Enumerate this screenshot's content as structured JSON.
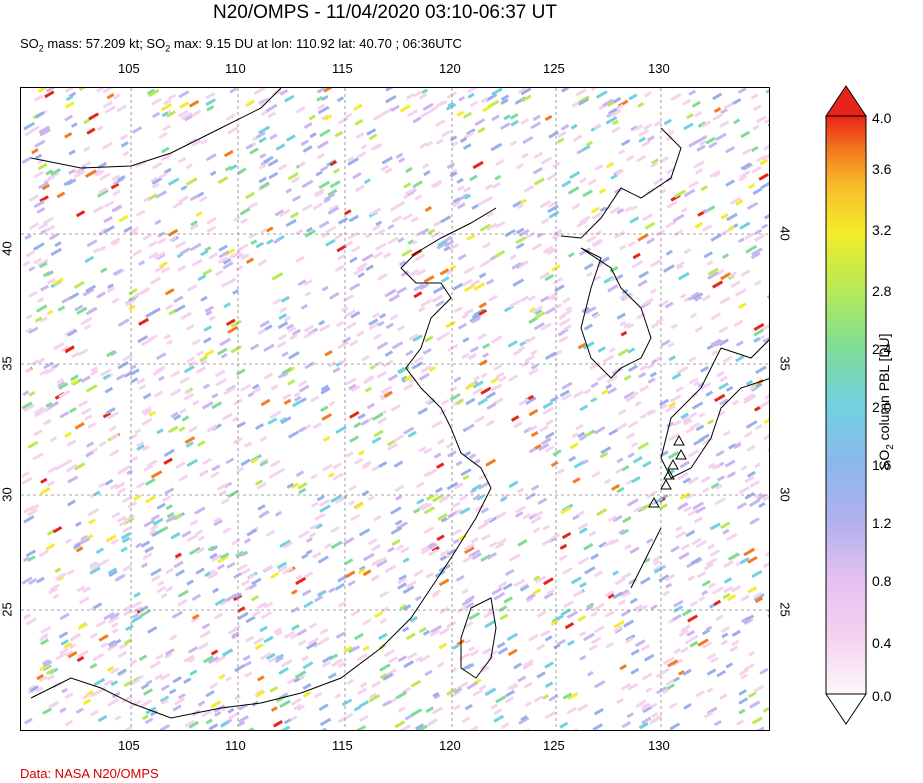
{
  "title": "N20/OMPS - 11/04/2020 03:10-06:37 UT",
  "subtitle": {
    "so2_1": "SO",
    "sub_1": "2",
    "mass_text": " mass: 57.209 kt; SO",
    "sub_2": "2",
    "max_text": " max: 9.15 DU at lon: 110.92 lat: 40.70 ; 06:36UTC"
  },
  "credit": "Data: NASA N20/OMPS",
  "axes": {
    "lon_ticks": [
      "105",
      "110",
      "115",
      "120",
      "125",
      "130"
    ],
    "lat_ticks": [
      "40",
      "35",
      "30",
      "25"
    ]
  },
  "colorbar": {
    "label_main": "SO",
    "label_sub": "2",
    "label_rest": " column PBL [DU]",
    "ticks": [
      "4.0",
      "3.6",
      "3.2",
      "2.8",
      "2.4",
      "2.0",
      "1.6",
      "1.2",
      "0.8",
      "0.4",
      "0.0"
    ],
    "colors": [
      "#fdf7f8",
      "#f5d2ee",
      "#c8b6f0",
      "#9ab0ec",
      "#70d2e0",
      "#7fdc96",
      "#b7ea55",
      "#f4ec2b",
      "#f8bc29",
      "#f47b1f",
      "#e8231a"
    ]
  },
  "volcano_markers": [
    "volcano-triangle"
  ]
}
